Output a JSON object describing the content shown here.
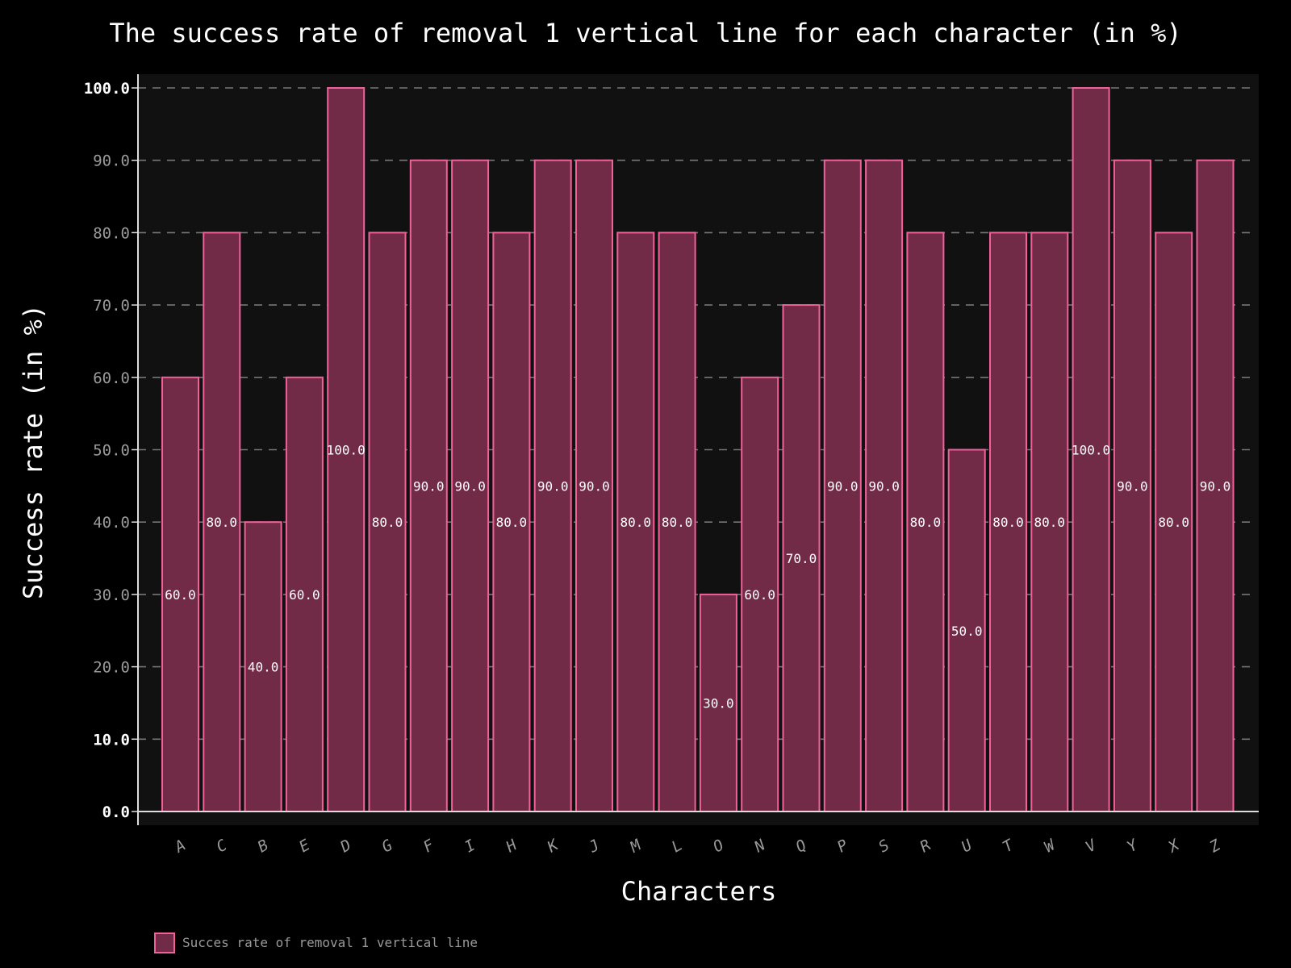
{
  "chart_data": {
    "type": "bar",
    "title": "The success rate of removal 1 vertical line for each character (in %)",
    "xlabel": "Characters",
    "ylabel": "Success rate (in %)",
    "ylim": [
      0,
      100
    ],
    "yticks": [
      "0.0",
      "10.0",
      "20.0",
      "30.0",
      "40.0",
      "50.0",
      "60.0",
      "70.0",
      "80.0",
      "90.0",
      "100.0"
    ],
    "bold_yticks": [
      "0.0",
      "10.0",
      "100.0"
    ],
    "grid": "horizontal dashed",
    "legend_position": "bottom-left",
    "categories": [
      "A",
      "C",
      "B",
      "E",
      "D",
      "G",
      "F",
      "I",
      "H",
      "K",
      "J",
      "M",
      "L",
      "O",
      "N",
      "Q",
      "P",
      "S",
      "R",
      "U",
      "T",
      "W",
      "V",
      "Y",
      "X",
      "Z"
    ],
    "series": [
      {
        "name": "Succes rate of removal 1 vertical line",
        "values": [
          60,
          80,
          40,
          60,
          100,
          80,
          90,
          90,
          80,
          90,
          90,
          80,
          80,
          30,
          60,
          70,
          90,
          90,
          80,
          50,
          80,
          80,
          100,
          90,
          80,
          90
        ],
        "value_labels": [
          "60.0",
          "80.0",
          "40.0",
          "60.0",
          "100.0",
          "80.0",
          "90.0",
          "90.0",
          "80.0",
          "90.0",
          "90.0",
          "80.0",
          "80.0",
          "30.0",
          "60.0",
          "70.0",
          "90.0",
          "90.0",
          "80.0",
          "50.0",
          "80.0",
          "80.0",
          "100.0",
          "90.0",
          "80.0",
          "90.0"
        ]
      }
    ],
    "colors": {
      "background": "#000000",
      "plot_background": "#111111",
      "bar_fill": "#722b47",
      "bar_edge": "#f0619a",
      "grid": "#777777"
    }
  }
}
